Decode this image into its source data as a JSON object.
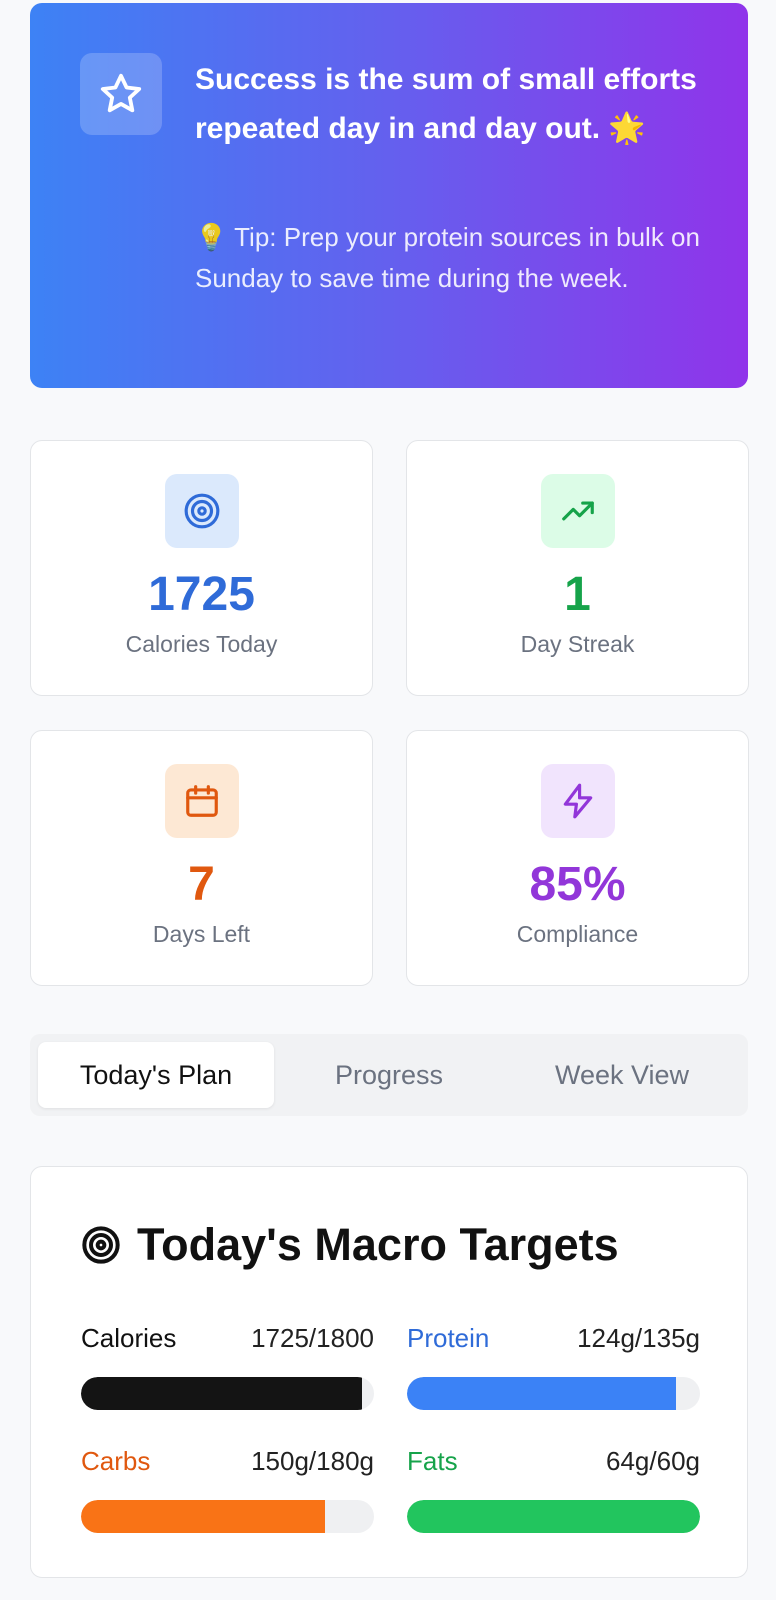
{
  "hero": {
    "quote": "Success is the sum of small efforts repeated day in and day out. 🌟",
    "tip": "💡 Tip: Prep your protein sources in bulk on Sunday to save time during the week.",
    "icon": "star-icon"
  },
  "stats": [
    {
      "value": "1725",
      "label": "Calories Today",
      "icon": "target-icon",
      "color": "#2f6bd8",
      "bg": "#dbe9fc"
    },
    {
      "value": "1",
      "label": "Day Streak",
      "icon": "trending-up-icon",
      "color": "#16a34a",
      "bg": "#dcfce7"
    },
    {
      "value": "7",
      "label": "Days Left",
      "icon": "calendar-icon",
      "color": "#e0580f",
      "bg": "#fde8d4"
    },
    {
      "value": "85%",
      "label": "Compliance",
      "icon": "zap-icon",
      "color": "#9236d9",
      "bg": "#f1e4fd"
    }
  ],
  "tabs": [
    {
      "label": "Today's Plan",
      "active": true
    },
    {
      "label": "Progress",
      "active": false
    },
    {
      "label": "Week View",
      "active": false
    }
  ],
  "macros": {
    "title": "Today's Macro Targets",
    "items": [
      {
        "name": "Calories",
        "value": "1725/1800",
        "progress": 0.958,
        "name_color": "#111111",
        "bar_color": "#141414"
      },
      {
        "name": "Protein",
        "value": "124g/135g",
        "progress": 0.919,
        "name_color": "#2f6bd8",
        "bar_color": "#3b82f6"
      },
      {
        "name": "Carbs",
        "value": "150g/180g",
        "progress": 0.833,
        "name_color": "#e0580f",
        "bar_color": "#f97316"
      },
      {
        "name": "Fats",
        "value": "64g/60g",
        "progress": 1.0,
        "name_color": "#16a34a",
        "bar_color": "#22c55e"
      }
    ]
  }
}
